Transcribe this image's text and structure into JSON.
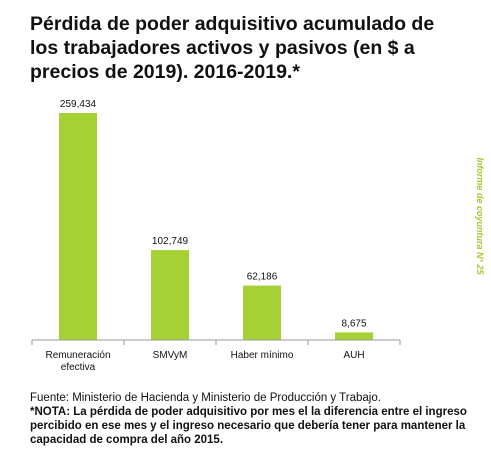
{
  "title": "Pérdida de poder adquisitivo acumulado de los trabajadores activos y pasivos (en $ a precios de 2019). 2016-2019.*",
  "side_note": "Informe de coyuntura N° 25",
  "colors": {
    "bar": "#a6d135",
    "side_note": "#9fcb2e",
    "axis": "#9a9a9a"
  },
  "chart_data": {
    "type": "bar",
    "title": "",
    "xlabel": "",
    "ylabel": "",
    "categories": [
      "Remuneración efectiva",
      "SMVyM",
      "Haber mínimo",
      "AUH"
    ],
    "tick_labels": [
      [
        "Remuneración",
        "efectiva"
      ],
      [
        "SMVyM"
      ],
      [
        "Haber mínimo"
      ],
      [
        "AUH"
      ]
    ],
    "values": [
      259434,
      102749,
      62186,
      8675
    ],
    "value_labels": [
      "259,434",
      "102,749",
      "62,186",
      "8,675"
    ],
    "ylim": [
      0,
      280000
    ],
    "grid": false,
    "legend": "none"
  },
  "footer": {
    "source": "Fuente: Ministerio de Hacienda y Ministerio de Producción y Trabajo.",
    "note": "*NOTA: La pérdida de poder adquisitivo por mes el la diferencia entre el ingreso percibido en ese mes y el ingreso necesario que debería tener para mantener la capacidad de compra del año 2015."
  }
}
